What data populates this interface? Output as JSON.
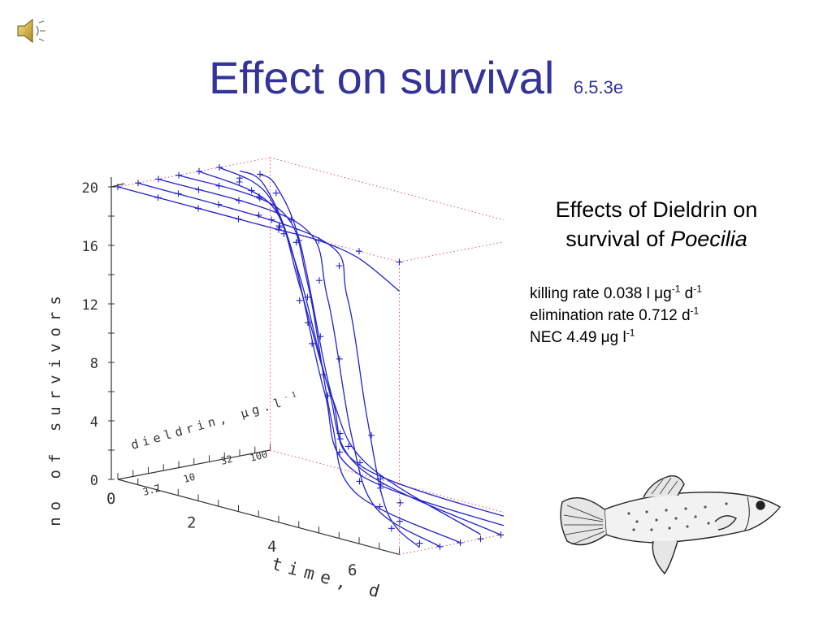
{
  "slide": {
    "title": "Effect on survival",
    "title_ref": "6.5.3e",
    "title_color": "#333399",
    "icons": [
      "speaker-icon",
      "fish-illustration"
    ]
  },
  "info": {
    "heading_prefix": "Effects of Dieldrin on",
    "heading_mid": "survival of",
    "heading_species": "Poecilia",
    "killing_rate": {
      "label": "killing rate",
      "value": "0.038",
      "unit_a": "l",
      "mu": "μ",
      "unit_b": "g",
      "exp_1": "-1",
      "unit_c": "d",
      "exp_2": "-1"
    },
    "elimination_rate": {
      "label": "elimination rate",
      "value": "0.712",
      "unit": "d",
      "exp": "-1"
    },
    "nec": {
      "label": "NEC",
      "value": "4.49",
      "mu": "μ",
      "unit_a": "g",
      "unit_b": "l",
      "exp": "-1"
    }
  },
  "chart_data": {
    "type": "line",
    "projection": "3d",
    "zlabel": "no of survivors",
    "xlabel": "time, d",
    "ylabel": "dieldrin, μg.l",
    "ylabel_exp": "-1",
    "z_ticks": [
      "0",
      "4",
      "8",
      "12",
      "16",
      "20"
    ],
    "x_ticks": [
      "0",
      "2",
      "4",
      "6"
    ],
    "y_ticks": [
      "3.2",
      "10",
      "32",
      "100"
    ],
    "zlim": [
      0,
      20
    ],
    "xlim": [
      0,
      7
    ],
    "series_color": "#2222cc",
    "series": [
      {
        "depth": 0,
        "fitted": [
          [
            0,
            20
          ],
          [
            2,
            20
          ],
          [
            3,
            20
          ],
          [
            4,
            20
          ],
          [
            5,
            20
          ],
          [
            6,
            19.5
          ],
          [
            7,
            18
          ]
        ],
        "observed": [
          [
            0,
            20
          ],
          [
            1,
            20
          ],
          [
            2,
            20
          ],
          [
            3,
            20
          ],
          [
            4,
            20
          ],
          [
            5,
            20
          ],
          [
            6,
            20
          ],
          [
            7,
            20
          ]
        ]
      },
      {
        "depth": 1,
        "fitted": [
          [
            0,
            20
          ],
          [
            4.5,
            19.5
          ],
          [
            5.2,
            16
          ],
          [
            5.7,
            8
          ],
          [
            6.2,
            2
          ],
          [
            7,
            0.2
          ]
        ],
        "observed": [
          [
            0,
            20
          ],
          [
            1,
            20
          ],
          [
            2,
            20
          ],
          [
            3,
            20
          ],
          [
            4,
            19
          ],
          [
            5,
            18
          ],
          [
            5.8,
            7
          ],
          [
            6.3,
            1
          ],
          [
            7,
            0.5
          ]
        ]
      },
      {
        "depth": 2,
        "fitted": [
          [
            0,
            20
          ],
          [
            3.5,
            19.5
          ],
          [
            4.2,
            15
          ],
          [
            4.8,
            6
          ],
          [
            5.4,
            1.5
          ],
          [
            7,
            0
          ]
        ],
        "observed": [
          [
            0,
            20
          ],
          [
            1,
            20
          ],
          [
            2,
            20
          ],
          [
            3,
            19
          ],
          [
            4,
            16
          ],
          [
            4.5,
            11
          ],
          [
            5,
            3
          ],
          [
            6,
            1
          ],
          [
            7,
            0
          ]
        ]
      },
      {
        "depth": 3,
        "fitted": [
          [
            0,
            20
          ],
          [
            2.5,
            19.5
          ],
          [
            3.2,
            15
          ],
          [
            3.8,
            6
          ],
          [
            4.4,
            1.5
          ],
          [
            7,
            0
          ]
        ],
        "observed": [
          [
            0,
            20
          ],
          [
            1,
            20
          ],
          [
            2,
            20
          ],
          [
            2.8,
            19
          ],
          [
            3.2,
            14
          ],
          [
            3.6,
            9
          ],
          [
            4,
            4
          ],
          [
            5,
            1
          ],
          [
            7,
            0
          ]
        ]
      },
      {
        "depth": 4,
        "fitted": [
          [
            0,
            20
          ],
          [
            1.8,
            19
          ],
          [
            2.5,
            14
          ],
          [
            3.3,
            7
          ],
          [
            4.2,
            3
          ],
          [
            7,
            0.3
          ]
        ],
        "observed": [
          [
            0,
            20
          ],
          [
            1,
            20
          ],
          [
            1.8,
            18
          ],
          [
            2.5,
            13
          ],
          [
            3.2,
            7
          ],
          [
            4,
            3
          ],
          [
            5,
            1
          ],
          [
            7,
            0
          ]
        ]
      },
      {
        "depth": 5,
        "fitted": [
          [
            0,
            20
          ],
          [
            1.2,
            19
          ],
          [
            2,
            14
          ],
          [
            2.7,
            7
          ],
          [
            3.5,
            2
          ],
          [
            7,
            0
          ]
        ],
        "observed": [
          [
            0,
            20
          ],
          [
            0.8,
            19
          ],
          [
            1.5,
            17
          ],
          [
            2.2,
            11
          ],
          [
            3,
            4
          ],
          [
            4,
            1
          ],
          [
            7,
            0
          ]
        ]
      },
      {
        "depth": 6,
        "fitted": [
          [
            0,
            19.5
          ],
          [
            0.6,
            19
          ],
          [
            1.3,
            15
          ],
          [
            2.1,
            6
          ],
          [
            2.9,
            1
          ],
          [
            7,
            0
          ]
        ],
        "observed": [
          [
            0,
            19
          ],
          [
            0.5,
            18
          ],
          [
            1.1,
            16
          ],
          [
            1.8,
            9
          ],
          [
            2.5,
            3
          ],
          [
            3.5,
            1
          ],
          [
            7,
            0
          ]
        ]
      },
      {
        "depth": 7,
        "fitted": [
          [
            0,
            19
          ],
          [
            0.4,
            18.5
          ],
          [
            1,
            15
          ],
          [
            1.8,
            5
          ],
          [
            2.6,
            0.8
          ],
          [
            7,
            0
          ]
        ],
        "observed": [
          [
            0,
            19
          ],
          [
            0.4,
            18
          ],
          [
            0.9,
            15
          ],
          [
            1.5,
            9
          ],
          [
            2.2,
            2
          ],
          [
            3,
            0
          ],
          [
            7,
            0
          ]
        ]
      }
    ]
  }
}
